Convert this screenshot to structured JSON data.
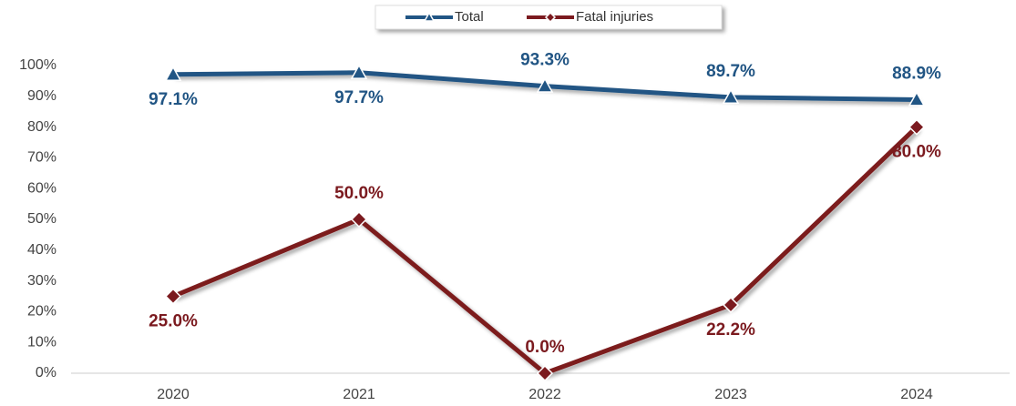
{
  "chart_data": {
    "type": "line",
    "categories": [
      "2020",
      "2021",
      "2022",
      "2023",
      "2024"
    ],
    "series": [
      {
        "name": "Total",
        "color": "#215584",
        "marker": "triangle",
        "values": [
          97.1,
          97.7,
          93.3,
          89.7,
          88.9
        ],
        "value_labels": [
          "97.1%",
          "97.7%",
          "93.3%",
          "89.7%",
          "88.9%"
        ]
      },
      {
        "name": "Fatal injuries",
        "color": "#7b1a1f",
        "marker": "diamond",
        "values": [
          25.0,
          50.0,
          0.0,
          22.2,
          80.0
        ],
        "value_labels": [
          "25.0%",
          "50.0%",
          "0.0%",
          "22.2%",
          "80.0%"
        ]
      }
    ],
    "ylim": [
      0,
      100
    ],
    "yticks": [
      {
        "value": 0,
        "label": "0%"
      },
      {
        "value": 10,
        "label": "10%"
      },
      {
        "value": 20,
        "label": "20%"
      },
      {
        "value": 30,
        "label": "30%"
      },
      {
        "value": 40,
        "label": "40%"
      },
      {
        "value": 50,
        "label": "50%"
      },
      {
        "value": 60,
        "label": "60%"
      },
      {
        "value": 70,
        "label": "70%"
      },
      {
        "value": 80,
        "label": "80%"
      },
      {
        "value": 90,
        "label": "90%"
      },
      {
        "value": 100,
        "label": "100%"
      }
    ],
    "grid": false,
    "legend": "top"
  }
}
